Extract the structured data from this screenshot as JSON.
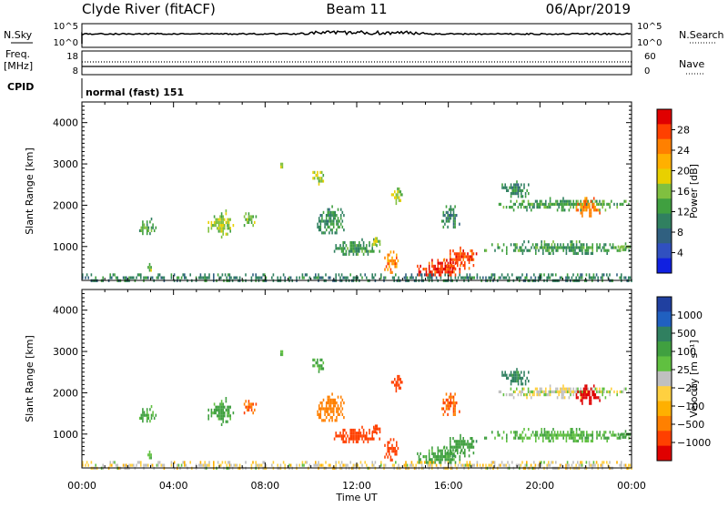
{
  "header": {
    "station": "Clyde River (fitACF)",
    "beam": "Beam 11",
    "date": "06/Apr/2019"
  },
  "strip_panels": {
    "nsky": {
      "left_label": "N.Sky",
      "right_label": "N.Search",
      "left_ticks": [
        "10^5",
        "10^0"
      ],
      "right_ticks": [
        "10^5",
        "10^0"
      ]
    },
    "freq": {
      "left_label_1": "Freq.",
      "left_label_2": "[MHz]",
      "right_label": "Nave",
      "left_ticks": [
        "18",
        "8"
      ],
      "right_ticks": [
        "60",
        "0"
      ]
    },
    "cpid": {
      "label": "CPID",
      "text": "normal (fast) 151"
    }
  },
  "chart_data": [
    {
      "type": "heatmap",
      "name": "power",
      "ylabel": "Slant Range [km]",
      "xlabel": "",
      "ylim": [
        180,
        4500
      ],
      "yticks": [
        "1000",
        "2000",
        "3000",
        "4000"
      ],
      "xticks": [
        "00:00",
        "04:00",
        "08:00",
        "12:00",
        "16:00",
        "20:00",
        "00:00"
      ],
      "colorbar": {
        "label": "Power [dB]",
        "ticks": [
          "28",
          "24",
          "20",
          "16",
          "12",
          "8",
          "4"
        ],
        "colors": [
          "#e00000",
          "#ff4000",
          "#ff8000",
          "#ffb000",
          "#e8d000",
          "#80c040",
          "#40a040",
          "#308060",
          "#306080",
          "#3050c0",
          "#1020e0"
        ]
      },
      "regions": [
        {
          "t": [
            0.0,
            24.0
          ],
          "r": [
            180,
            350
          ],
          "v": 9
        },
        {
          "t": [
            2.5,
            3.2
          ],
          "r": [
            1300,
            1700
          ],
          "v": 12
        },
        {
          "t": [
            2.8,
            3.1
          ],
          "r": [
            450,
            600
          ],
          "v": 14
        },
        {
          "t": [
            5.5,
            6.6
          ],
          "r": [
            1200,
            1900
          ],
          "v": 16
        },
        {
          "t": [
            7.0,
            7.6
          ],
          "r": [
            1500,
            1900
          ],
          "v": 14
        },
        {
          "t": [
            8.6,
            8.9
          ],
          "r": [
            2900,
            3100
          ],
          "v": 18
        },
        {
          "t": [
            10.0,
            10.6
          ],
          "r": [
            2500,
            2900
          ],
          "v": 16
        },
        {
          "t": [
            10.2,
            11.5
          ],
          "r": [
            1300,
            2000
          ],
          "v": 10
        },
        {
          "t": [
            11.0,
            13.0
          ],
          "r": [
            800,
            1200
          ],
          "v": 11
        },
        {
          "t": [
            12.6,
            13.0
          ],
          "r": [
            1000,
            1300
          ],
          "v": 16
        },
        {
          "t": [
            13.2,
            13.8
          ],
          "r": [
            400,
            900
          ],
          "v": 24
        },
        {
          "t": [
            13.5,
            14.0
          ],
          "r": [
            2000,
            2500
          ],
          "v": 16
        },
        {
          "t": [
            14.5,
            16.6
          ],
          "r": [
            300,
            700
          ],
          "v": 28
        },
        {
          "t": [
            15.8,
            17.2
          ],
          "r": [
            500,
            1000
          ],
          "v": 27
        },
        {
          "t": [
            15.5,
            16.5
          ],
          "r": [
            1500,
            2000
          ],
          "v": 9
        },
        {
          "t": [
            17.5,
            24.0
          ],
          "r": [
            850,
            1150
          ],
          "v": 11
        },
        {
          "t": [
            18.0,
            24.0
          ],
          "r": [
            1900,
            2200
          ],
          "v": 12
        },
        {
          "t": [
            18.2,
            19.5
          ],
          "r": [
            2200,
            2600
          ],
          "v": 10
        },
        {
          "t": [
            21.5,
            22.6
          ],
          "r": [
            1700,
            2200
          ],
          "v": 24
        },
        {
          "t": [
            23.2,
            24.0
          ],
          "r": [
            900,
            1100
          ],
          "v": 14
        }
      ]
    },
    {
      "type": "heatmap",
      "name": "velocity",
      "ylabel": "Slant Range [km]",
      "xlabel": "Time UT",
      "ylim": [
        180,
        4500
      ],
      "yticks": [
        "1000",
        "2000",
        "3000",
        "4000"
      ],
      "xticks": [
        "00:00",
        "04:00",
        "08:00",
        "12:00",
        "16:00",
        "20:00",
        "00:00"
      ],
      "colorbar": {
        "label": "Velocity [m s⁻¹]",
        "ticks": [
          "1000",
          "500",
          "100",
          "25",
          "−25",
          "−100",
          "−500",
          "−1000"
        ],
        "colors": [
          "#2040a0",
          "#2060c0",
          "#308060",
          "#40a040",
          "#60c040",
          "#c0c0c0",
          "#ffd040",
          "#ffb000",
          "#ff8000",
          "#ff4000",
          "#e00000"
        ]
      },
      "regions": [
        {
          "t": [
            0.0,
            24.0
          ],
          "r": [
            180,
            350
          ],
          "v": -20
        },
        {
          "t": [
            2.5,
            3.2
          ],
          "r": [
            1300,
            1700
          ],
          "v": 120
        },
        {
          "t": [
            2.8,
            3.1
          ],
          "r": [
            450,
            600
          ],
          "v": 100
        },
        {
          "t": [
            5.5,
            6.6
          ],
          "r": [
            1200,
            1900
          ],
          "v": 150
        },
        {
          "t": [
            7.0,
            7.6
          ],
          "r": [
            1500,
            1900
          ],
          "v": -300
        },
        {
          "t": [
            8.6,
            8.9
          ],
          "r": [
            2900,
            3100
          ],
          "v": 120
        },
        {
          "t": [
            10.0,
            10.6
          ],
          "r": [
            2500,
            2900
          ],
          "v": 120
        },
        {
          "t": [
            10.2,
            11.5
          ],
          "r": [
            1300,
            2000
          ],
          "v": -200
        },
        {
          "t": [
            11.0,
            13.0
          ],
          "r": [
            800,
            1200
          ],
          "v": -400
        },
        {
          "t": [
            12.6,
            13.0
          ],
          "r": [
            1000,
            1300
          ],
          "v": -400
        },
        {
          "t": [
            13.2,
            13.8
          ],
          "r": [
            400,
            900
          ],
          "v": -400
        },
        {
          "t": [
            13.5,
            14.0
          ],
          "r": [
            2000,
            2500
          ],
          "v": -400
        },
        {
          "t": [
            14.5,
            16.6
          ],
          "r": [
            300,
            700
          ],
          "v": 150
        },
        {
          "t": [
            15.8,
            17.2
          ],
          "r": [
            500,
            1000
          ],
          "v": 200
        },
        {
          "t": [
            15.5,
            16.5
          ],
          "r": [
            1500,
            2000
          ],
          "v": -300
        },
        {
          "t": [
            17.5,
            24.0
          ],
          "r": [
            850,
            1150
          ],
          "v": 90
        },
        {
          "t": [
            18.0,
            24.0
          ],
          "r": [
            1900,
            2200
          ],
          "v": 0
        },
        {
          "t": [
            18.2,
            19.5
          ],
          "r": [
            2200,
            2600
          ],
          "v": 300
        },
        {
          "t": [
            21.5,
            22.6
          ],
          "r": [
            1700,
            2200
          ],
          "v": -700
        },
        {
          "t": [
            23.2,
            24.0
          ],
          "r": [
            900,
            1100
          ],
          "v": 200
        }
      ]
    }
  ],
  "x_axis": {
    "label": "Time UT",
    "ticks": [
      "00:00",
      "04:00",
      "08:00",
      "12:00",
      "16:00",
      "20:00",
      "00:00"
    ]
  }
}
